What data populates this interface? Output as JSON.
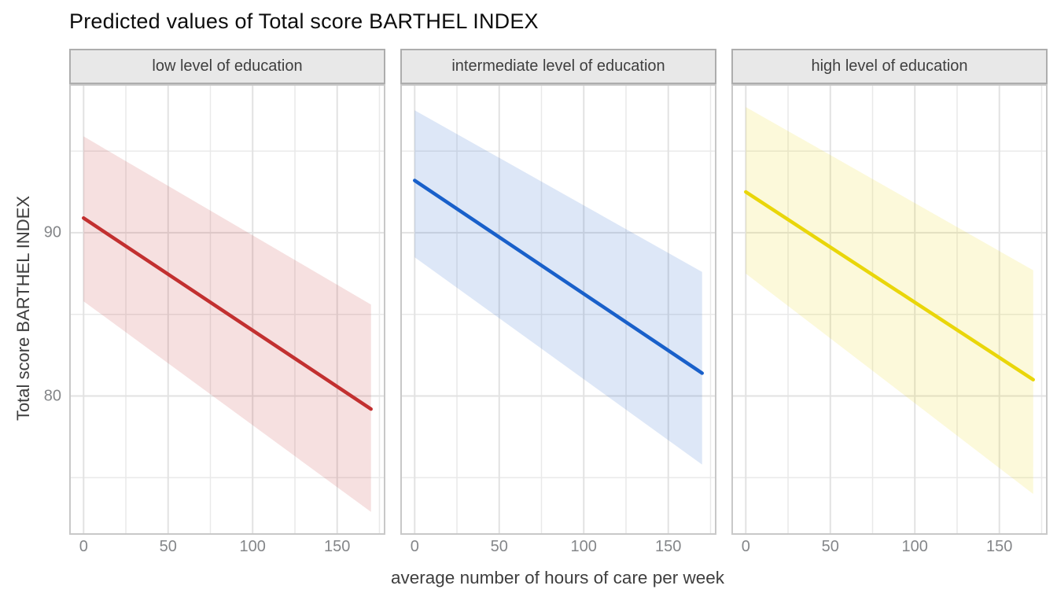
{
  "title": "Predicted values of Total score BARTHEL INDEX",
  "axes": {
    "x_label": "average number of hours of care per week",
    "y_label": "Total score BARTHEL INDEX"
  },
  "chart_data": {
    "type": "line",
    "title": "Predicted values of Total score BARTHEL INDEX",
    "xlabel": "average number of hours of care per week",
    "ylabel": "Total score BARTHEL INDEX",
    "xlim": [
      -8.5,
      178.5
    ],
    "ylim": [
      71.5,
      99.1
    ],
    "x_major_ticks": [
      0,
      50,
      100,
      150
    ],
    "x_minor_ticks": [
      25,
      75,
      125,
      175
    ],
    "y_major_ticks": [
      80,
      90
    ],
    "y_minor_ticks": [
      75,
      85,
      95
    ],
    "grid": true,
    "legend_position": "none",
    "facets": [
      {
        "label": "low level of education",
        "line_color": "#c23030",
        "ribbon_fill": "#f5e1e1",
        "x": [
          0,
          170
        ],
        "predicted": [
          90.9,
          79.2
        ],
        "ci_upper": [
          95.9,
          85.6
        ],
        "ci_lower": [
          85.8,
          72.9
        ]
      },
      {
        "label": "intermediate level of education",
        "line_color": "#1960ca",
        "ribbon_fill": "#dde8f6",
        "x": [
          0,
          170
        ],
        "predicted": [
          93.2,
          81.4
        ],
        "ci_upper": [
          97.5,
          87.6
        ],
        "ci_lower": [
          88.5,
          75.8
        ]
      },
      {
        "label": "high level of education",
        "line_color": "#e9d60a",
        "ribbon_fill": "#faf5d9",
        "x": [
          0,
          170
        ],
        "predicted": [
          92.5,
          81.0
        ],
        "ci_upper": [
          97.7,
          87.7
        ],
        "ci_lower": [
          87.5,
          74.0
        ]
      }
    ],
    "style": {
      "panel_border": "#c8c8c8",
      "grid_major": "#e2e2e2",
      "grid_minor": "#e9e9e9",
      "strip_bg": "#e8e8e8",
      "strip_border": "#adadad",
      "ribbon_opacity": 0.15
    }
  }
}
